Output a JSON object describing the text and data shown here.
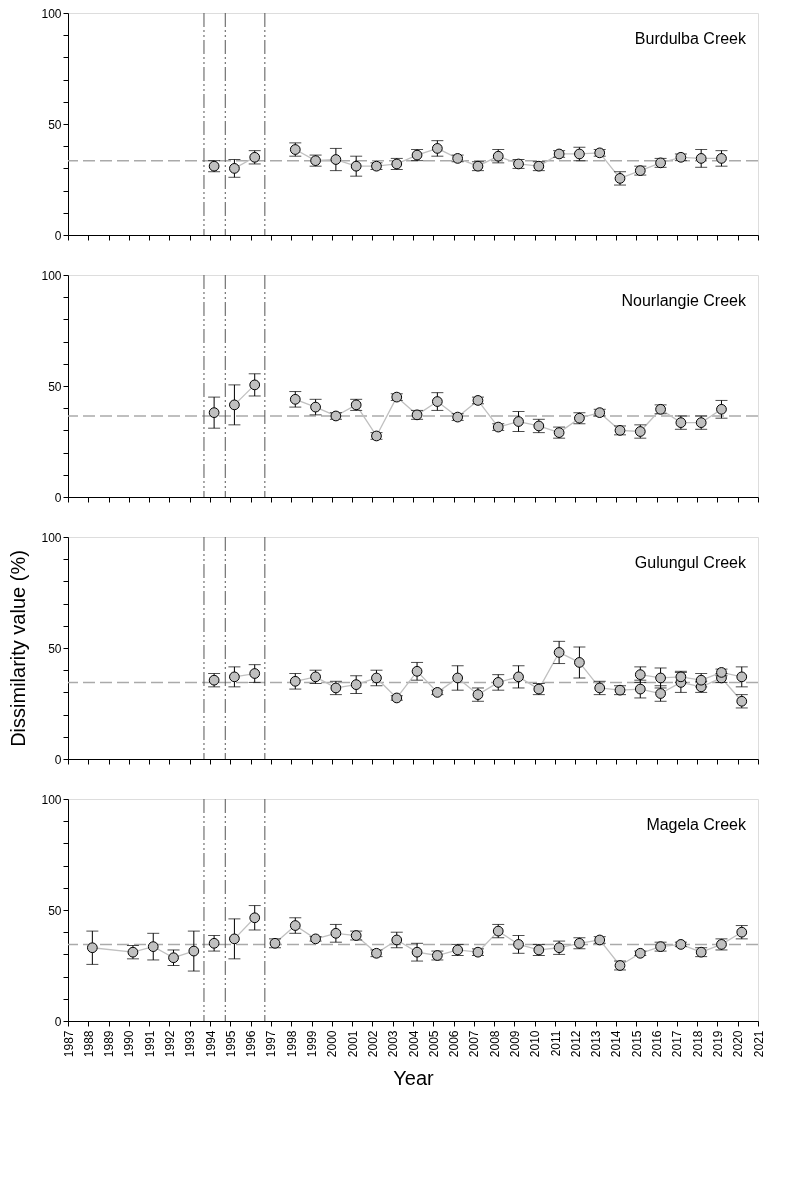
{
  "chart_data": [
    {
      "type": "line",
      "title": "Burdulba Creek",
      "xlim": [
        1987,
        2021
      ],
      "xticks": [
        1987,
        1988,
        1989,
        1990,
        1991,
        1992,
        1993,
        1994,
        1995,
        1996,
        1997,
        1998,
        1999,
        2000,
        2001,
        2002,
        2003,
        2004,
        2005,
        2006,
        2007,
        2008,
        2009,
        2010,
        2011,
        2012,
        2013,
        2014,
        2015,
        2016,
        2017,
        2018,
        2019,
        2020,
        2021
      ],
      "ylim": [
        0,
        100
      ],
      "yticks": [
        0,
        {
          "value": 10,
          "label": null
        },
        {
          "value": 20,
          "label": null
        },
        {
          "value": 30,
          "label": null
        },
        {
          "value": 40,
          "label": null
        },
        50,
        {
          "value": 60,
          "label": null
        },
        {
          "value": 70,
          "label": null
        },
        {
          "value": 80,
          "label": null
        },
        {
          "value": 90,
          "label": null
        },
        100
      ],
      "tick_labels": "y",
      "grid": false,
      "marker": "circle",
      "line_style": "solid",
      "series": [
        {
          "color": "#c0c0c0",
          "x": [
            1994.2
          ],
          "values": [
            31
          ],
          "errors": [
            2.5
          ]
        },
        {
          "color": "#c0c0c0",
          "x": [
            1995.2,
            1996.2
          ],
          "values": [
            30,
            35
          ],
          "errors": [
            4,
            3
          ]
        },
        {
          "color": "#c0c0c0",
          "x": [
            1998.2,
            1999.2,
            2000.2,
            2001.2,
            2002.2,
            2003.2,
            2004.2,
            2005.2,
            2006.2,
            2007.2,
            2008.2,
            2009.2,
            2010.2,
            2011.2,
            2012.2,
            2013.2,
            2014.2,
            2015.2,
            2016.2,
            2017.2,
            2018.2,
            2019.2
          ],
          "values": [
            38.5,
            33.5,
            34,
            31,
            31,
            32,
            36,
            39,
            34.5,
            31,
            35.5,
            32,
            31,
            36.5,
            36.5,
            37,
            25.5,
            29,
            32.5,
            35,
            34.5,
            34.5
          ],
          "errors": [
            3,
            2.5,
            5,
            4.5,
            1.5,
            2.5,
            2.5,
            3.5,
            1.5,
            2,
            3,
            2,
            2,
            1.5,
            3,
            1.5,
            3,
            2,
            2,
            1.5,
            4,
            3.5
          ]
        }
      ],
      "ref_lines": [
        {
          "axis": "y",
          "value": 33.5,
          "color": "#aaaaaa",
          "line_style": "dashed"
        },
        {
          "axis": "x",
          "value": 1993.7,
          "color": "#555555",
          "line_style": "dotted"
        },
        {
          "axis": "x",
          "value": 1994.75,
          "color": "#555555",
          "line_style": "dotted"
        },
        {
          "axis": "x",
          "value": 1996.7,
          "color": "#555555",
          "line_style": "dotted"
        }
      ]
    },
    {
      "type": "line",
      "title": "Nourlangie Creek",
      "xlim": [
        1987,
        2021
      ],
      "xticks": [
        1987,
        1988,
        1989,
        1990,
        1991,
        1992,
        1993,
        1994,
        1995,
        1996,
        1997,
        1998,
        1999,
        2000,
        2001,
        2002,
        2003,
        2004,
        2005,
        2006,
        2007,
        2008,
        2009,
        2010,
        2011,
        2012,
        2013,
        2014,
        2015,
        2016,
        2017,
        2018,
        2019,
        2020,
        2021
      ],
      "ylim": [
        0,
        100
      ],
      "yticks": [
        0,
        {
          "value": 10,
          "label": null
        },
        {
          "value": 20,
          "label": null
        },
        {
          "value": 30,
          "label": null
        },
        {
          "value": 40,
          "label": null
        },
        50,
        {
          "value": 60,
          "label": null
        },
        {
          "value": 70,
          "label": null
        },
        {
          "value": 80,
          "label": null
        },
        {
          "value": 90,
          "label": null
        },
        100
      ],
      "tick_labels": "y",
      "grid": false,
      "marker": "circle",
      "line_style": "solid",
      "series": [
        {
          "color": "#c0c0c0",
          "x": [
            1994.2
          ],
          "values": [
            38
          ],
          "errors": [
            7
          ]
        },
        {
          "color": "#c0c0c0",
          "x": [
            1995.2,
            1996.2
          ],
          "values": [
            41.5,
            50.5
          ],
          "errors": [
            9,
            5
          ]
        },
        {
          "color": "#c0c0c0",
          "x": [
            1998.2,
            1999.2,
            2000.2,
            2001.2,
            2002.2,
            2003.2,
            2004.2,
            2005.2,
            2006.2,
            2007.2,
            2008.2,
            2009.2,
            2010.2,
            2011.2,
            2012.2,
            2013.2,
            2014.2,
            2015.2,
            2016.2,
            2017.2,
            2018.2,
            2019.2
          ],
          "values": [
            44,
            40.5,
            36.5,
            41.5,
            27.5,
            45,
            37,
            43,
            36,
            43.5,
            31.5,
            34,
            32,
            29,
            35.5,
            38,
            30,
            29.5,
            39.5,
            33.5,
            33.5,
            39.5
          ],
          "errors": [
            3.5,
            3.5,
            1.5,
            2.5,
            1.5,
            1.5,
            2,
            4,
            1.5,
            1.5,
            1.5,
            4.5,
            3,
            2.5,
            2.5,
            1.5,
            2,
            3,
            2,
            3,
            3,
            4
          ]
        }
      ],
      "ref_lines": [
        {
          "axis": "y",
          "value": 36.5,
          "color": "#aaaaaa",
          "line_style": "dashed"
        },
        {
          "axis": "x",
          "value": 1993.7,
          "color": "#555555",
          "line_style": "dotted"
        },
        {
          "axis": "x",
          "value": 1994.75,
          "color": "#555555",
          "line_style": "dotted"
        },
        {
          "axis": "x",
          "value": 1996.7,
          "color": "#555555",
          "line_style": "dotted"
        }
      ]
    },
    {
      "type": "line",
      "title": "Gulungul Creek",
      "ylabel": "Dissimilarity value (%)",
      "xlim": [
        1987,
        2021
      ],
      "xticks": [
        1987,
        1988,
        1989,
        1990,
        1991,
        1992,
        1993,
        1994,
        1995,
        1996,
        1997,
        1998,
        1999,
        2000,
        2001,
        2002,
        2003,
        2004,
        2005,
        2006,
        2007,
        2008,
        2009,
        2010,
        2011,
        2012,
        2013,
        2014,
        2015,
        2016,
        2017,
        2018,
        2019,
        2020,
        2021
      ],
      "ylim": [
        0,
        100
      ],
      "yticks": [
        0,
        {
          "value": 10,
          "label": null
        },
        {
          "value": 20,
          "label": null
        },
        {
          "value": 30,
          "label": null
        },
        {
          "value": 40,
          "label": null
        },
        50,
        {
          "value": 60,
          "label": null
        },
        {
          "value": 70,
          "label": null
        },
        {
          "value": 80,
          "label": null
        },
        {
          "value": 90,
          "label": null
        },
        100
      ],
      "tick_labels": "y",
      "grid": false,
      "marker": "circle",
      "line_style": "solid",
      "series": [
        {
          "color": "#c0c0c0",
          "x": [
            1994.2
          ],
          "values": [
            35.5
          ],
          "errors": [
            3
          ]
        },
        {
          "color": "#c0c0c0",
          "x": [
            1995.2,
            1996.2
          ],
          "values": [
            37,
            38.5
          ],
          "errors": [
            4.5,
            4
          ]
        },
        {
          "color": "#c0c0c0",
          "x": [
            1998.2,
            1999.2,
            2000.2,
            2001.2,
            2002.2,
            2003.2,
            2004.2,
            2005.2,
            2006.2,
            2007.2,
            2008.2,
            2009.2,
            2010.2,
            2011.2,
            2012.2,
            2013.2,
            2014.2,
            2015.2,
            2016.2,
            2017.2,
            2018.2,
            2019.2,
            2020.2
          ],
          "values": [
            35,
            37,
            32,
            33.5,
            36.5,
            27.5,
            39.5,
            30,
            36.5,
            29,
            34.5,
            37,
            31.5,
            48,
            43.5,
            32,
            31,
            31.5,
            29.5,
            34.5,
            32.5,
            36.5,
            26
          ],
          "errors": [
            3.5,
            3,
            3,
            4,
            3.5,
            1,
            4,
            1,
            5.5,
            3,
            3.5,
            5,
            2.5,
            5,
            7,
            3,
            2,
            4,
            3.5,
            4.5,
            2.5,
            2,
            3
          ]
        },
        {
          "color": "#000000",
          "x": [
            2015.2,
            2016.2,
            2017.2,
            2018.2,
            2019.2,
            2020.2
          ],
          "values": [
            38,
            36.5,
            37,
            35.5,
            39,
            37
          ],
          "errors": [
            3.5,
            4.5,
            2.5,
            3,
            1.5,
            4.5
          ]
        }
      ],
      "ref_lines": [
        {
          "axis": "y",
          "value": 34.5,
          "color": "#aaaaaa",
          "line_style": "dashed"
        },
        {
          "axis": "x",
          "value": 1993.7,
          "color": "#555555",
          "line_style": "dotted"
        },
        {
          "axis": "x",
          "value": 1994.75,
          "color": "#555555",
          "line_style": "dotted"
        },
        {
          "axis": "x",
          "value": 1996.7,
          "color": "#555555",
          "line_style": "dotted"
        }
      ]
    },
    {
      "type": "line",
      "title": "Magela Creek",
      "xlabel": "Year",
      "xlim": [
        1987,
        2021
      ],
      "xticks": [
        1987,
        1988,
        1989,
        1990,
        1991,
        1992,
        1993,
        1994,
        1995,
        1996,
        1997,
        1998,
        1999,
        2000,
        2001,
        2002,
        2003,
        2004,
        2005,
        2006,
        2007,
        2008,
        2009,
        2010,
        2011,
        2012,
        2013,
        2014,
        2015,
        2016,
        2017,
        2018,
        2019,
        2020,
        2021
      ],
      "ylim": [
        0,
        100
      ],
      "yticks": [
        0,
        {
          "value": 10,
          "label": null
        },
        {
          "value": 20,
          "label": null
        },
        {
          "value": 30,
          "label": null
        },
        {
          "value": 40,
          "label": null
        },
        50,
        {
          "value": 60,
          "label": null
        },
        {
          "value": 70,
          "label": null
        },
        {
          "value": 80,
          "label": null
        },
        {
          "value": 90,
          "label": null
        },
        100
      ],
      "grid": false,
      "marker": "circle",
      "line_style": "solid",
      "series": [
        {
          "color": "#c0c0c0",
          "x": [
            1988.2,
            1990.2,
            1991.2,
            1992.2,
            1993.2
          ],
          "values": [
            33,
            31,
            33.5,
            28.5,
            31.5
          ],
          "errors": [
            7.5,
            3,
            6,
            3.5,
            9
          ]
        },
        {
          "color": "#c0c0c0",
          "x": [
            1994.2
          ],
          "values": [
            35
          ],
          "errors": [
            3.5
          ]
        },
        {
          "color": "#c0c0c0",
          "x": [
            1995.2,
            1996.2
          ],
          "values": [
            37,
            46.5
          ],
          "errors": [
            9,
            5.5
          ]
        },
        {
          "color": "#c0c0c0",
          "x": [
            1997.2,
            1998.2,
            1999.2,
            2000.2,
            2001.2,
            2002.2,
            2003.2,
            2004.2,
            2005.2,
            2006.2,
            2007.2,
            2008.2,
            2009.2,
            2010.2,
            2011.2,
            2012.2,
            2013.2,
            2014.2,
            2015.2,
            2016.2,
            2017.2,
            2018.2,
            2019.2,
            2020.2
          ],
          "values": [
            35,
            43,
            37,
            39.5,
            38.5,
            30.5,
            36.5,
            31,
            29.5,
            32,
            31,
            40.5,
            34.5,
            32,
            33,
            35,
            36.5,
            25,
            30.5,
            33.5,
            34.5,
            31,
            34.5,
            40
          ],
          "errors": [
            2,
            3.5,
            1,
            4,
            2,
            1.5,
            3.5,
            4,
            2,
            2.5,
            1.5,
            3,
            4,
            2.5,
            3,
            2.5,
            1.5,
            2,
            1,
            2,
            1,
            2,
            2.5,
            3
          ]
        }
      ],
      "ref_lines": [
        {
          "axis": "y",
          "value": 34.5,
          "color": "#aaaaaa",
          "line_style": "dashed"
        },
        {
          "axis": "x",
          "value": 1993.7,
          "color": "#555555",
          "line_style": "dotted"
        },
        {
          "axis": "x",
          "value": 1994.75,
          "color": "#555555",
          "line_style": "dotted"
        },
        {
          "axis": "x",
          "value": 1996.7,
          "color": "#555555",
          "line_style": "dotted"
        }
      ]
    }
  ]
}
